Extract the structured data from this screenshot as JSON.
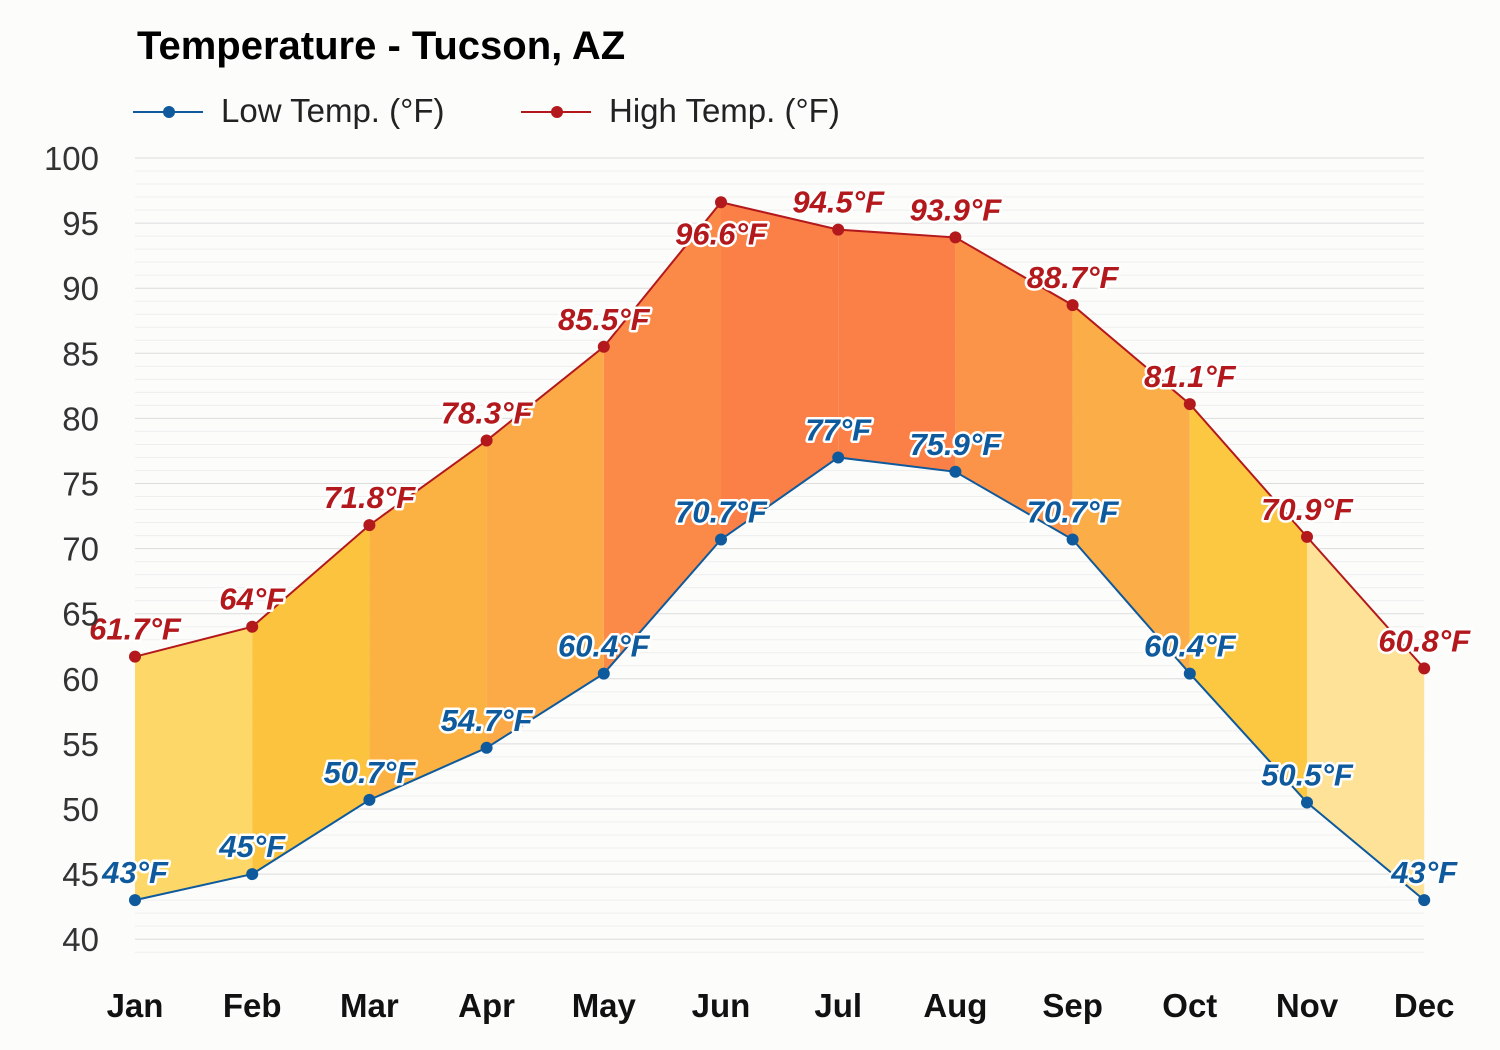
{
  "chart_data": {
    "type": "area",
    "title": "Temperature - Tucson, AZ",
    "xlabel": "",
    "ylabel": "",
    "ylim": [
      40,
      100
    ],
    "yticks": [
      "40",
      "45",
      "50",
      "55",
      "60",
      "65",
      "70",
      "75",
      "80",
      "85",
      "90",
      "95",
      "100"
    ],
    "categories": [
      "Jan",
      "Feb",
      "Mar",
      "Apr",
      "May",
      "Jun",
      "Jul",
      "Aug",
      "Sep",
      "Oct",
      "Nov",
      "Dec"
    ],
    "grid": true,
    "legend_position": "top-left",
    "series": [
      {
        "name": "Low Temp. (°F)",
        "color": "#0e5a9c",
        "values": [
          43,
          45,
          50.7,
          54.7,
          60.4,
          70.7,
          77,
          75.9,
          70.7,
          60.4,
          50.5,
          43
        ],
        "labels": [
          "43°F",
          "45°F",
          "50.7°F",
          "54.7°F",
          "60.4°F",
          "70.7°F",
          "77°F",
          "75.9°F",
          "70.7°F",
          "60.4°F",
          "50.5°F",
          "43°F"
        ]
      },
      {
        "name": "High Temp. (°F)",
        "color": "#b3191c",
        "values": [
          61.7,
          64,
          71.8,
          78.3,
          85.5,
          96.6,
          94.5,
          93.9,
          88.7,
          81.1,
          70.9,
          60.8
        ],
        "labels": [
          "61.7°F",
          "64°F",
          "71.8°F",
          "78.3°F",
          "85.5°F",
          "96.6°F",
          "94.5°F",
          "93.9°F",
          "88.7°F",
          "81.1°F",
          "70.9°F",
          "60.8°F"
        ]
      }
    ],
    "band_colors": [
      "#fdd868",
      "#fcc33f",
      "#fbb242",
      "#fca948",
      "#fb8a48",
      "#fb8048",
      "#fb8048",
      "#fb9348",
      "#fbad48",
      "#fcc842",
      "#fde298"
    ]
  }
}
